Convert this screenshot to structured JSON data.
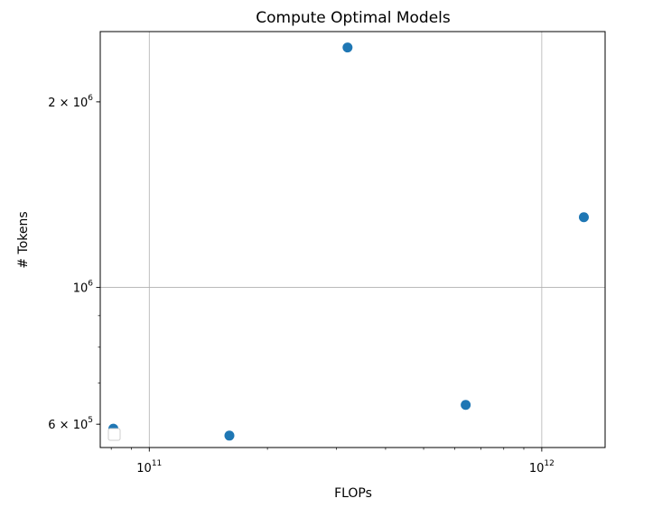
{
  "chart_data": {
    "type": "scatter",
    "title": "Compute Optimal Models",
    "xlabel": "FLOPs",
    "ylabel": "# Tokens",
    "xscale": "log",
    "yscale": "log",
    "xlim": [
      75000000000.0,
      1450000000000.0
    ],
    "ylim": [
      550000.0,
      2600000.0
    ],
    "grid": true,
    "legend": "lower-left",
    "series": [
      {
        "x": [
          81000000000.0,
          160000000000.0,
          320000000000.0,
          640000000000.0,
          1280000000000.0
        ],
        "y": [
          590000.0,
          575000.0,
          2450000.0,
          645000.0,
          1300000.0
        ]
      }
    ],
    "x_ticks": [
      {
        "value": 100000000000.0,
        "base": "10",
        "exp": "11"
      },
      {
        "value": 1000000000000.0,
        "base": "10",
        "exp": "12"
      }
    ],
    "y_ticks": [
      {
        "value": 600000.0,
        "mant": "6",
        "base": "10",
        "exp": "5"
      },
      {
        "value": 1000000.0,
        "mant": "",
        "base": "10",
        "exp": "6"
      },
      {
        "value": 2000000.0,
        "mant": "2",
        "base": "10",
        "exp": "6"
      }
    ],
    "marker_color": "#1f77b4"
  }
}
